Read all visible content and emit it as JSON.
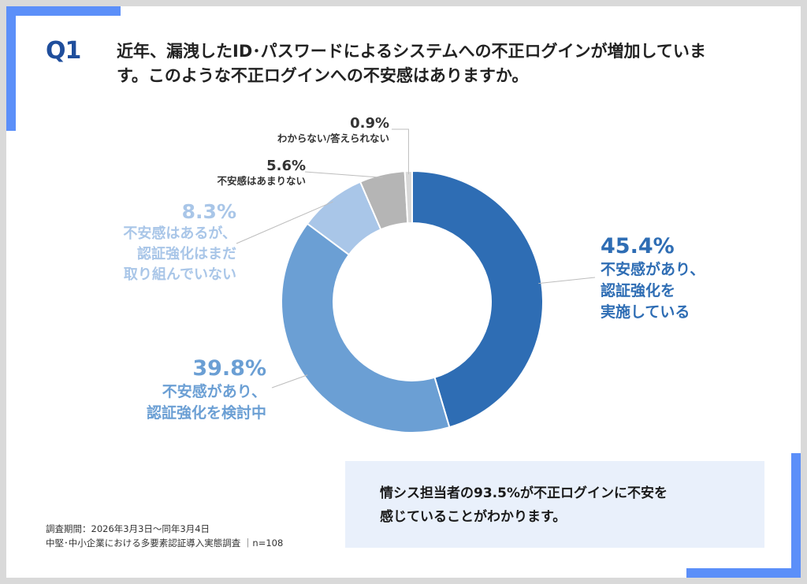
{
  "question": {
    "label": "Q1",
    "text": "近年、漏洩したID･パスワードによるシステムへの不正ログインが増加しています。このような不正ログインへの不安感はありますか。"
  },
  "chart_data": {
    "type": "pie",
    "donut": true,
    "categories": [
      "不安感があり、認証強化を実施している",
      "不安感があり、認証強化を検討中",
      "不安感はあるが、認証強化はまだ取り組んでいない",
      "不安感はあまりない",
      "わからない/答えられない"
    ],
    "values": [
      45.4,
      39.8,
      8.3,
      5.6,
      0.9
    ],
    "colors": [
      "#2e6db4",
      "#6b9fd4",
      "#a9c6e8",
      "#b5b5b5",
      "#d9d9d9"
    ]
  },
  "labels": [
    {
      "pct": "45.4%",
      "desc": "不安感があり、\n認証強化を\n実施している",
      "color": "#2e6db4"
    },
    {
      "pct": "39.8%",
      "desc": "不安感があり、\n認証強化を検討中",
      "color": "#6b9fd4"
    },
    {
      "pct": "8.3%",
      "desc": "不安感はあるが、\n認証強化はまだ\n取り組んでいない",
      "color": "#a9c6e8"
    },
    {
      "pct": "5.6%",
      "desc": "不安感はあまりない",
      "color": "#333333"
    },
    {
      "pct": "0.9%",
      "desc": "わからない/答えられない",
      "color": "#333333"
    }
  ],
  "footnote": {
    "period": "調査期間：2026年3月3日〜同年3月4日",
    "survey": "中堅･中小企業における多要素認証導入実態調査 ｜n=108"
  },
  "callout": {
    "text": "情シス担当者の93.5%が不正ログインに不安を\n感じていることがわかります。"
  }
}
